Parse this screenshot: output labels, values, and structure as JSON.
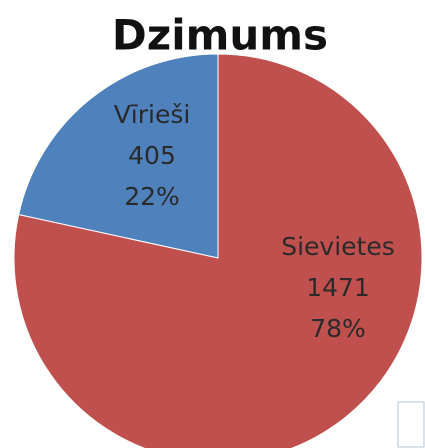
{
  "chart_data": {
    "type": "pie",
    "title": "Dzimums",
    "categories": [
      "Vīrieši",
      "Sievietes"
    ],
    "values": [
      405,
      1471
    ],
    "percents": [
      22,
      78
    ],
    "percent_labels": [
      "22%",
      "78%"
    ],
    "colors": [
      "#4f81bd",
      "#c0504d"
    ]
  }
}
